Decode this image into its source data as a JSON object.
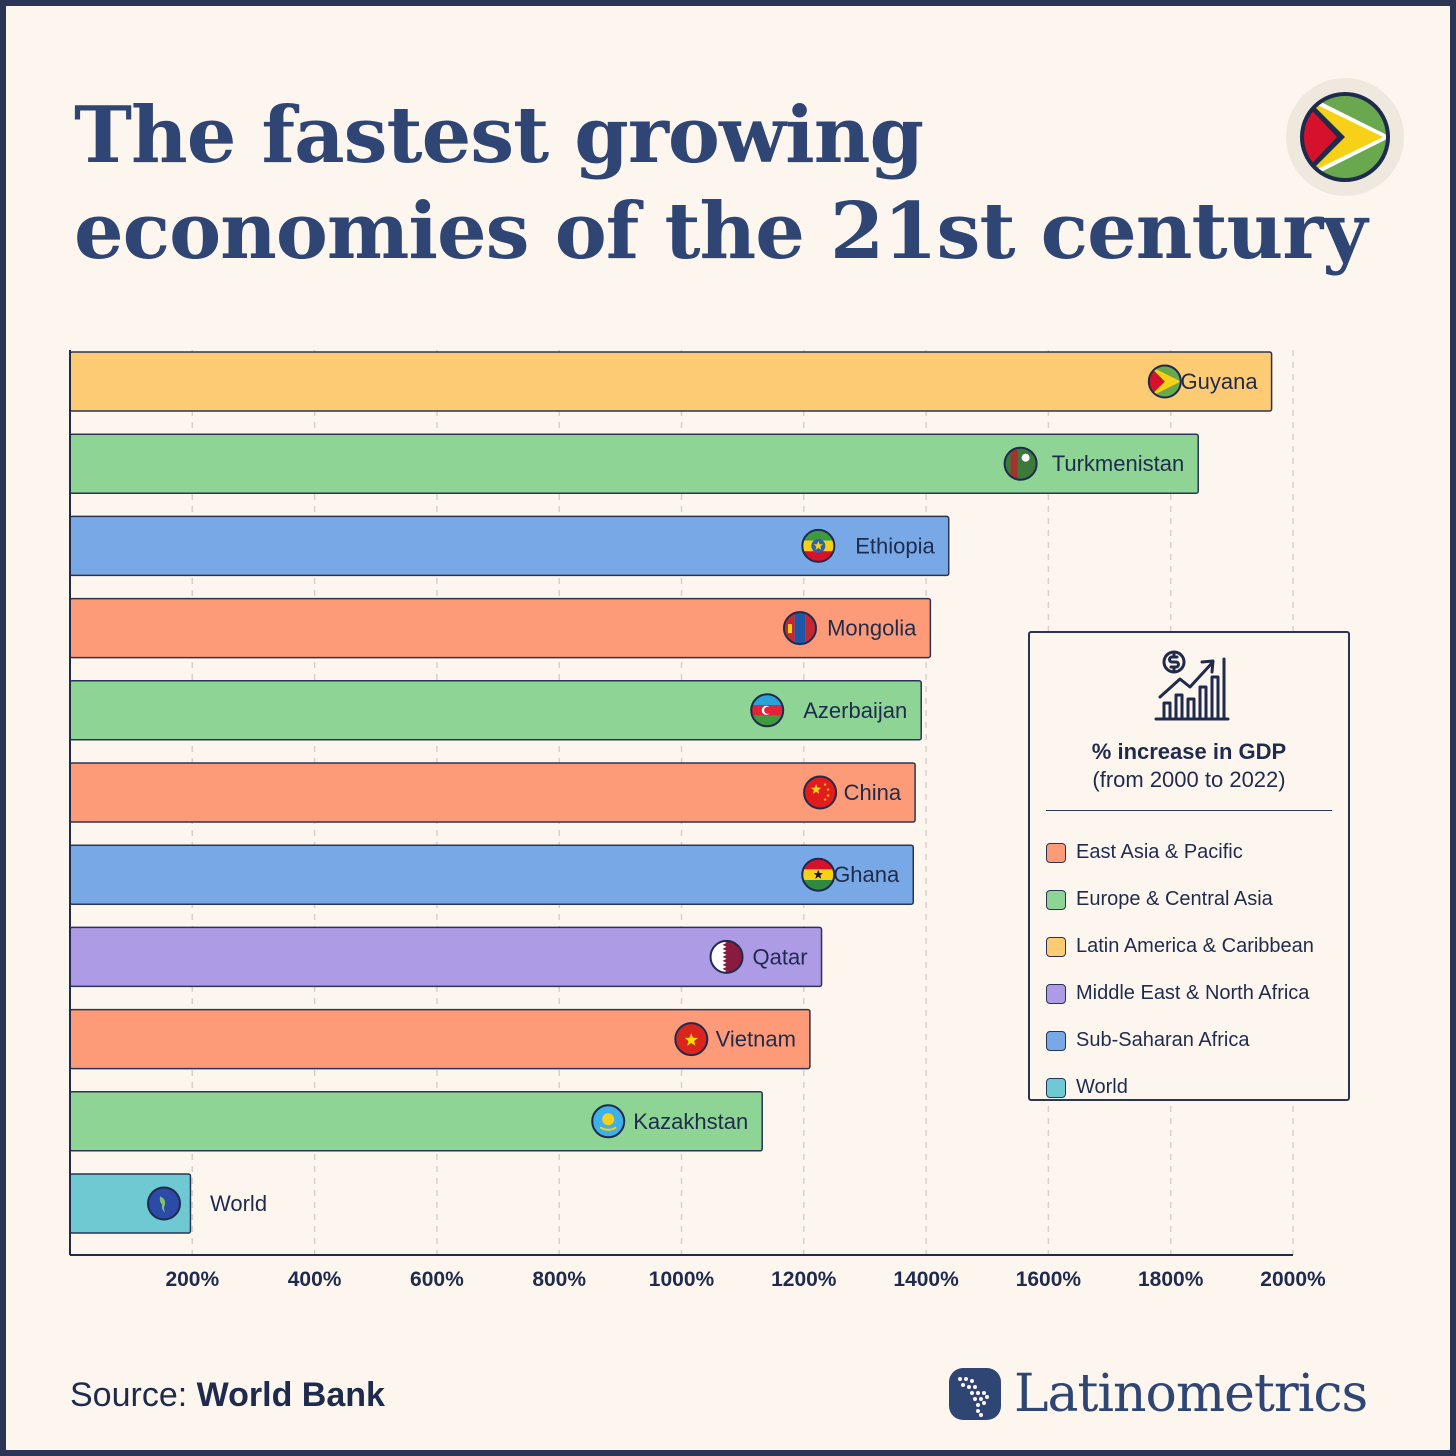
{
  "title_lines": [
    "The fastest growing",
    "economies of the 21st century"
  ],
  "colors": {
    "East Asia & Pacific": "#fd9a78",
    "Europe & Central Asia": "#8dd495",
    "Latin America & Caribbean": "#fecb75",
    "Middle East & North Africa": "#ae9be6",
    "Sub-Saharan Africa": "#78a8e6",
    "World": "#6fc9d3"
  },
  "legend": {
    "title": "% increase in GDP",
    "subtitle": "(from 2000 to 2022)",
    "icon": "growth-chart-icon",
    "items": [
      {
        "label": "East Asia & Pacific",
        "color": "#fd9a78"
      },
      {
        "label": "Europe & Central Asia",
        "color": "#8dd495"
      },
      {
        "label": "Latin America & Caribbean",
        "color": "#fecb75"
      },
      {
        "label": "Middle East & North Africa",
        "color": "#ae9be6"
      },
      {
        "label": "Sub-Saharan Africa",
        "color": "#78a8e6"
      },
      {
        "label": "World",
        "color": "#6fc9d3"
      }
    ]
  },
  "chart_data": {
    "type": "bar",
    "orientation": "horizontal",
    "categories": [
      "Guyana",
      "Turkmenistan",
      "Ethiopia",
      "Mongolia",
      "Azerbaijan",
      "China",
      "Ghana",
      "Qatar",
      "Vietnam",
      "Kazakhstan",
      "World"
    ],
    "values": [
      1965,
      1845,
      1437,
      1407,
      1392,
      1382,
      1379,
      1229,
      1210,
      1132,
      197
    ],
    "regions": [
      "Latin America & Caribbean",
      "Europe & Central Asia",
      "Sub-Saharan Africa",
      "East Asia & Pacific",
      "Europe & Central Asia",
      "East Asia & Pacific",
      "Sub-Saharan Africa",
      "Middle East & North Africa",
      "East Asia & Pacific",
      "Europe & Central Asia",
      "World"
    ],
    "x_ticks": [
      "200%",
      "400%",
      "600%",
      "800%",
      "1000%",
      "1200%",
      "1400%",
      "1600%",
      "1800%",
      "2000%"
    ],
    "xlim": [
      0,
      2000
    ],
    "grid": true,
    "legend_position": "right"
  },
  "source": {
    "prefix": "Source:",
    "name": "World Bank"
  },
  "brand": {
    "name": "Latinometrics",
    "icon": "latin-america-map-icon"
  }
}
